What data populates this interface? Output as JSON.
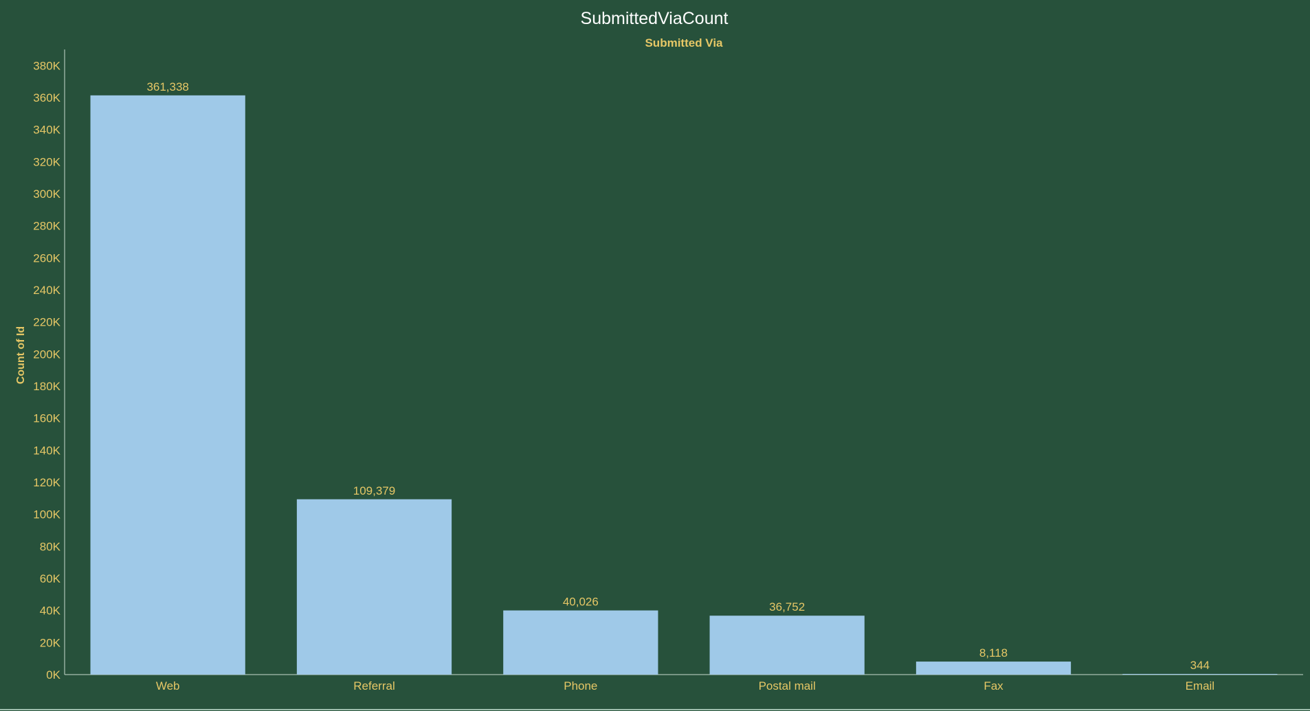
{
  "chart_data": {
    "type": "bar",
    "title": "SubmittedViaCount",
    "subtitle": "Submitted Via",
    "xlabel": "",
    "ylabel": "Count of Id",
    "categories": [
      "Web",
      "Referral",
      "Phone",
      "Postal mail",
      "Fax",
      "Email"
    ],
    "values": [
      361338,
      109379,
      40026,
      36752,
      8118,
      344
    ],
    "data_labels": [
      "361,338",
      "109,379",
      "40,026",
      "36,752",
      "8,118",
      "344"
    ],
    "ylim": [
      0,
      390000
    ],
    "yticks": [
      0,
      20000,
      40000,
      60000,
      80000,
      100000,
      120000,
      140000,
      160000,
      180000,
      200000,
      220000,
      240000,
      260000,
      280000,
      300000,
      320000,
      340000,
      360000,
      380000
    ],
    "ytick_labels": [
      "0K",
      "20K",
      "40K",
      "60K",
      "80K",
      "100K",
      "120K",
      "140K",
      "160K",
      "180K",
      "200K",
      "220K",
      "240K",
      "260K",
      "280K",
      "300K",
      "320K",
      "340K",
      "360K",
      "380K"
    ],
    "grid": false,
    "legend": "none"
  },
  "colors": {
    "background": "#27513b",
    "bar": "#9fc9e8",
    "text": "#e6c766",
    "title": "#ffffff",
    "axis": "#c8dccf"
  }
}
